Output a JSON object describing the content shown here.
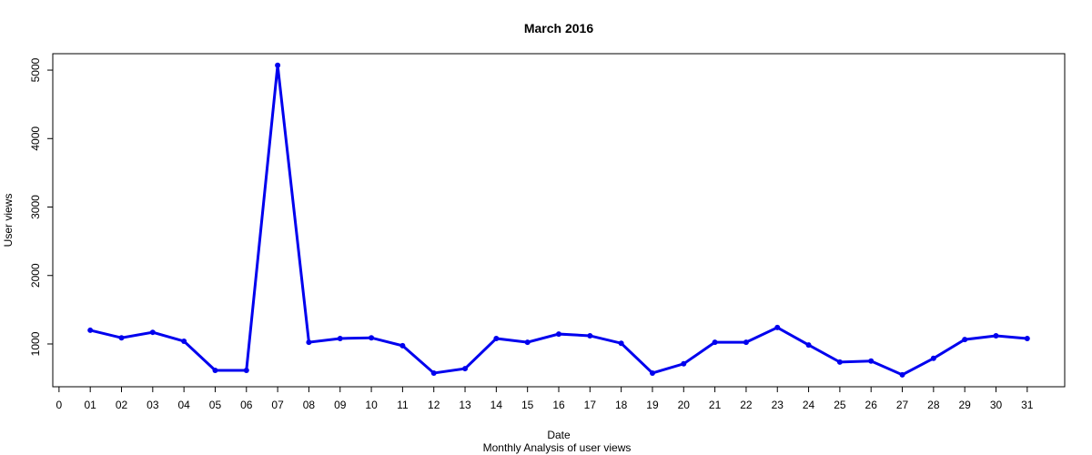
{
  "chart_data": {
    "type": "line",
    "title": "March 2016",
    "x_label": "Date",
    "subtitle": "Monthly Analysis of user views",
    "y_label": "User views",
    "x": [
      1,
      2,
      3,
      4,
      5,
      6,
      7,
      8,
      9,
      10,
      11,
      12,
      13,
      14,
      15,
      16,
      17,
      18,
      19,
      20,
      21,
      22,
      23,
      24,
      25,
      26,
      27,
      28,
      29,
      30,
      31
    ],
    "series": [
      {
        "name": "User views",
        "color": "#0000ee",
        "values": [
          1200,
          1090,
          1170,
          1040,
          615,
          615,
          5070,
          1025,
          1080,
          1090,
          975,
          575,
          640,
          1080,
          1025,
          1145,
          1120,
          1010,
          575,
          710,
          1025,
          1025,
          1240,
          985,
          735,
          750,
          550,
          790,
          1065,
          1120,
          1080
        ]
      }
    ],
    "xlim": [
      -0.2,
      32.2
    ],
    "xticks": [
      0,
      {
        "value": 1,
        "label": "01"
      },
      {
        "value": 2,
        "label": "02"
      },
      {
        "value": 3,
        "label": "03"
      },
      {
        "value": 4,
        "label": "04"
      },
      {
        "value": 5,
        "label": "05"
      },
      {
        "value": 6,
        "label": "06"
      },
      {
        "value": 7,
        "label": "07"
      },
      {
        "value": 8,
        "label": "08"
      },
      {
        "value": 9,
        "label": "09"
      },
      10,
      11,
      12,
      13,
      14,
      15,
      16,
      17,
      18,
      19,
      20,
      21,
      22,
      23,
      24,
      25,
      26,
      27,
      28,
      29,
      30,
      31
    ],
    "ylim": [
      375,
      5240
    ],
    "yticks": [
      1000,
      2000,
      3000,
      4000,
      5000
    ]
  }
}
